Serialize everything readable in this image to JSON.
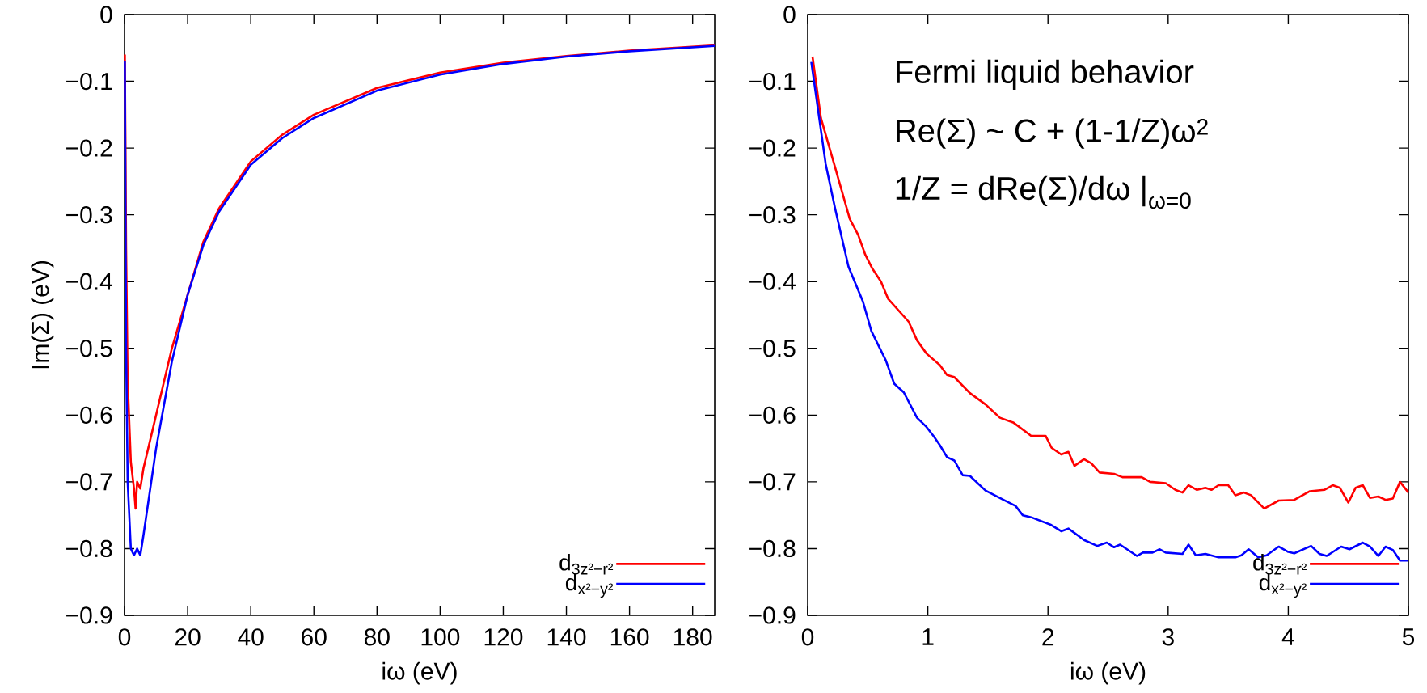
{
  "chart_data": [
    {
      "type": "line",
      "xlabel": "iω (eV)",
      "ylabel": "Im(Σ) (eV)",
      "xlim": [
        0,
        187
      ],
      "ylim": [
        -0.9,
        0
      ],
      "xticks": [
        0,
        20,
        40,
        60,
        80,
        100,
        120,
        140,
        160,
        180
      ],
      "yticks": [
        {
          "value": 0,
          "label": "0"
        },
        {
          "value": -0.1,
          "label": "−0.1"
        },
        {
          "value": -0.2,
          "label": "−0.2"
        },
        {
          "value": -0.3,
          "label": "−0.3"
        },
        {
          "value": -0.4,
          "label": "−0.4"
        },
        {
          "value": -0.5,
          "label": "−0.5"
        },
        {
          "value": -0.6,
          "label": "−0.6"
        },
        {
          "value": -0.7,
          "label": "−0.7"
        },
        {
          "value": -0.8,
          "label": "−0.8"
        },
        {
          "value": -0.9,
          "label": "−0.9"
        }
      ],
      "legend": "bottom right",
      "series": [
        {
          "name": "d$_{3z²−r²}$",
          "color": "#ff0000",
          "x": [
            0.1,
            0.5,
            1,
            2,
            3,
            3.5,
            4,
            5,
            6,
            10,
            15,
            20,
            25,
            30,
            40,
            50,
            60,
            80,
            100,
            120,
            140,
            160,
            187
          ],
          "values": [
            -0.06,
            -0.35,
            -0.55,
            -0.67,
            -0.71,
            -0.74,
            -0.7,
            -0.71,
            -0.68,
            -0.6,
            -0.5,
            -0.42,
            -0.34,
            -0.29,
            -0.22,
            -0.18,
            -0.15,
            -0.11,
            -0.087,
            -0.072,
            -0.062,
            -0.054,
            -0.046
          ]
        },
        {
          "name": "d$_{x²−y²}$",
          "color": "#0000ff",
          "x": [
            0.1,
            0.5,
            1,
            2,
            3,
            4,
            5,
            6,
            10,
            15,
            20,
            25,
            30,
            40,
            50,
            60,
            80,
            100,
            120,
            140,
            160,
            187
          ],
          "values": [
            -0.07,
            -0.5,
            -0.7,
            -0.8,
            -0.81,
            -0.8,
            -0.81,
            -0.78,
            -0.65,
            -0.52,
            -0.42,
            -0.345,
            -0.295,
            -0.225,
            -0.185,
            -0.155,
            -0.114,
            -0.09,
            -0.074,
            -0.063,
            -0.055,
            -0.047
          ]
        }
      ]
    },
    {
      "type": "line",
      "xlabel": "iω (eV)",
      "xlim": [
        0,
        5
      ],
      "ylim": [
        -0.9,
        0
      ],
      "xticks": [
        0,
        1,
        2,
        3,
        4,
        5
      ],
      "yticks": [
        {
          "value": 0,
          "label": "0"
        },
        {
          "value": -0.1,
          "label": "−0.1"
        },
        {
          "value": -0.2,
          "label": "−0.2"
        },
        {
          "value": -0.3,
          "label": "−0.3"
        },
        {
          "value": -0.4,
          "label": "−0.4"
        },
        {
          "value": -0.5,
          "label": "−0.5"
        },
        {
          "value": -0.6,
          "label": "−0.6"
        },
        {
          "value": -0.7,
          "label": "−0.7"
        },
        {
          "value": -0.8,
          "label": "−0.8"
        },
        {
          "value": -0.9,
          "label": "−0.9"
        }
      ],
      "legend": "bottom right",
      "annotations": [
        "Fermi liquid behavior",
        "Re(Σ) ~ C + (1-1/Z)ω$^{2}$",
        "1/Z = dRe(Σ)/dω |$_{ω=0}$"
      ],
      "series": [
        {
          "name": "d$_{3z²−r²}$",
          "color": "#ff0000",
          "x": [
            0.04,
            0.11,
            0.23,
            0.35,
            0.42,
            0.48,
            0.54,
            0.61,
            0.67,
            0.84,
            0.91,
            0.99,
            1.1,
            1.16,
            1.22,
            1.35,
            1.48,
            1.6,
            1.71,
            1.86,
            1.98,
            2.03,
            2.11,
            2.17,
            2.22,
            2.3,
            2.36,
            2.43,
            2.55,
            2.62,
            2.78,
            2.85,
            2.98,
            3.06,
            3.12,
            3.17,
            3.24,
            3.31,
            3.36,
            3.42,
            3.5,
            3.56,
            3.63,
            3.69,
            3.8,
            3.92,
            4.05,
            4.18,
            4.3,
            4.37,
            4.43,
            4.5,
            4.56,
            4.62,
            4.68,
            4.75,
            4.81,
            4.87,
            4.93,
            5.0
          ],
          "values": [
            -0.063,
            -0.155,
            -0.23,
            -0.306,
            -0.33,
            -0.36,
            -0.381,
            -0.4,
            -0.426,
            -0.46,
            -0.488,
            -0.508,
            -0.525,
            -0.54,
            -0.543,
            -0.567,
            -0.584,
            -0.604,
            -0.611,
            -0.631,
            -0.631,
            -0.649,
            -0.659,
            -0.655,
            -0.676,
            -0.666,
            -0.672,
            -0.686,
            -0.688,
            -0.693,
            -0.693,
            -0.7,
            -0.702,
            -0.712,
            -0.716,
            -0.705,
            -0.712,
            -0.709,
            -0.712,
            -0.705,
            -0.705,
            -0.72,
            -0.716,
            -0.72,
            -0.74,
            -0.728,
            -0.727,
            -0.714,
            -0.712,
            -0.705,
            -0.709,
            -0.731,
            -0.709,
            -0.705,
            -0.724,
            -0.722,
            -0.727,
            -0.725,
            -0.7,
            -0.716
          ]
        },
        {
          "name": "d$_{x²−y²}$",
          "color": "#0000ff",
          "x": [
            0.03,
            0.15,
            0.23,
            0.34,
            0.46,
            0.53,
            0.65,
            0.72,
            0.8,
            0.91,
            0.99,
            1.05,
            1.1,
            1.16,
            1.22,
            1.29,
            1.35,
            1.48,
            1.63,
            1.73,
            1.79,
            1.86,
            2.02,
            2.11,
            2.17,
            2.3,
            2.41,
            2.49,
            2.55,
            2.6,
            2.74,
            2.79,
            2.87,
            2.93,
            2.98,
            3.12,
            3.17,
            3.23,
            3.31,
            3.42,
            3.56,
            3.61,
            3.67,
            3.75,
            3.82,
            3.92,
            4.0,
            4.05,
            4.19,
            4.26,
            4.32,
            4.44,
            4.51,
            4.62,
            4.68,
            4.75,
            4.81,
            4.87,
            4.93,
            5.0
          ],
          "values": [
            -0.071,
            -0.224,
            -0.292,
            -0.378,
            -0.43,
            -0.474,
            -0.518,
            -0.553,
            -0.566,
            -0.604,
            -0.618,
            -0.632,
            -0.645,
            -0.663,
            -0.668,
            -0.69,
            -0.691,
            -0.713,
            -0.727,
            -0.736,
            -0.75,
            -0.753,
            -0.764,
            -0.774,
            -0.77,
            -0.787,
            -0.796,
            -0.791,
            -0.798,
            -0.794,
            -0.811,
            -0.806,
            -0.806,
            -0.801,
            -0.806,
            -0.808,
            -0.794,
            -0.81,
            -0.808,
            -0.813,
            -0.813,
            -0.81,
            -0.801,
            -0.813,
            -0.81,
            -0.797,
            -0.805,
            -0.807,
            -0.796,
            -0.808,
            -0.811,
            -0.797,
            -0.801,
            -0.791,
            -0.797,
            -0.811,
            -0.797,
            -0.802,
            -0.818,
            -0.818
          ]
        }
      ]
    }
  ]
}
